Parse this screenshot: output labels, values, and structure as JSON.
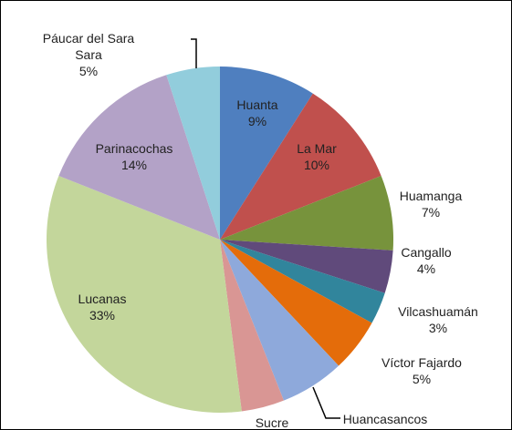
{
  "chart_data": {
    "type": "pie",
    "categories": [
      "Huanta",
      "La Mar",
      "Huamanga",
      "Cangallo",
      "Vilcashuamán",
      "Víctor Fajardo",
      "Huancasancos",
      "Sucre",
      "Lucanas",
      "Parinacochas",
      "Páucar del Sara Sara"
    ],
    "values": [
      9,
      10,
      7,
      4,
      3,
      5,
      6,
      4,
      33,
      14,
      5
    ],
    "value_labels": [
      "9%",
      "10%",
      "7%",
      "4%",
      "3%",
      "5%",
      null,
      null,
      "33%",
      "14%",
      "5%"
    ],
    "colors": [
      "#4f7fbf",
      "#c0504d",
      "#77933c",
      "#604a7b",
      "#31859c",
      "#e46c0a",
      "#8ea9db",
      "#d99694",
      "#c3d69b",
      "#b3a2c7",
      "#92cddc"
    ]
  }
}
